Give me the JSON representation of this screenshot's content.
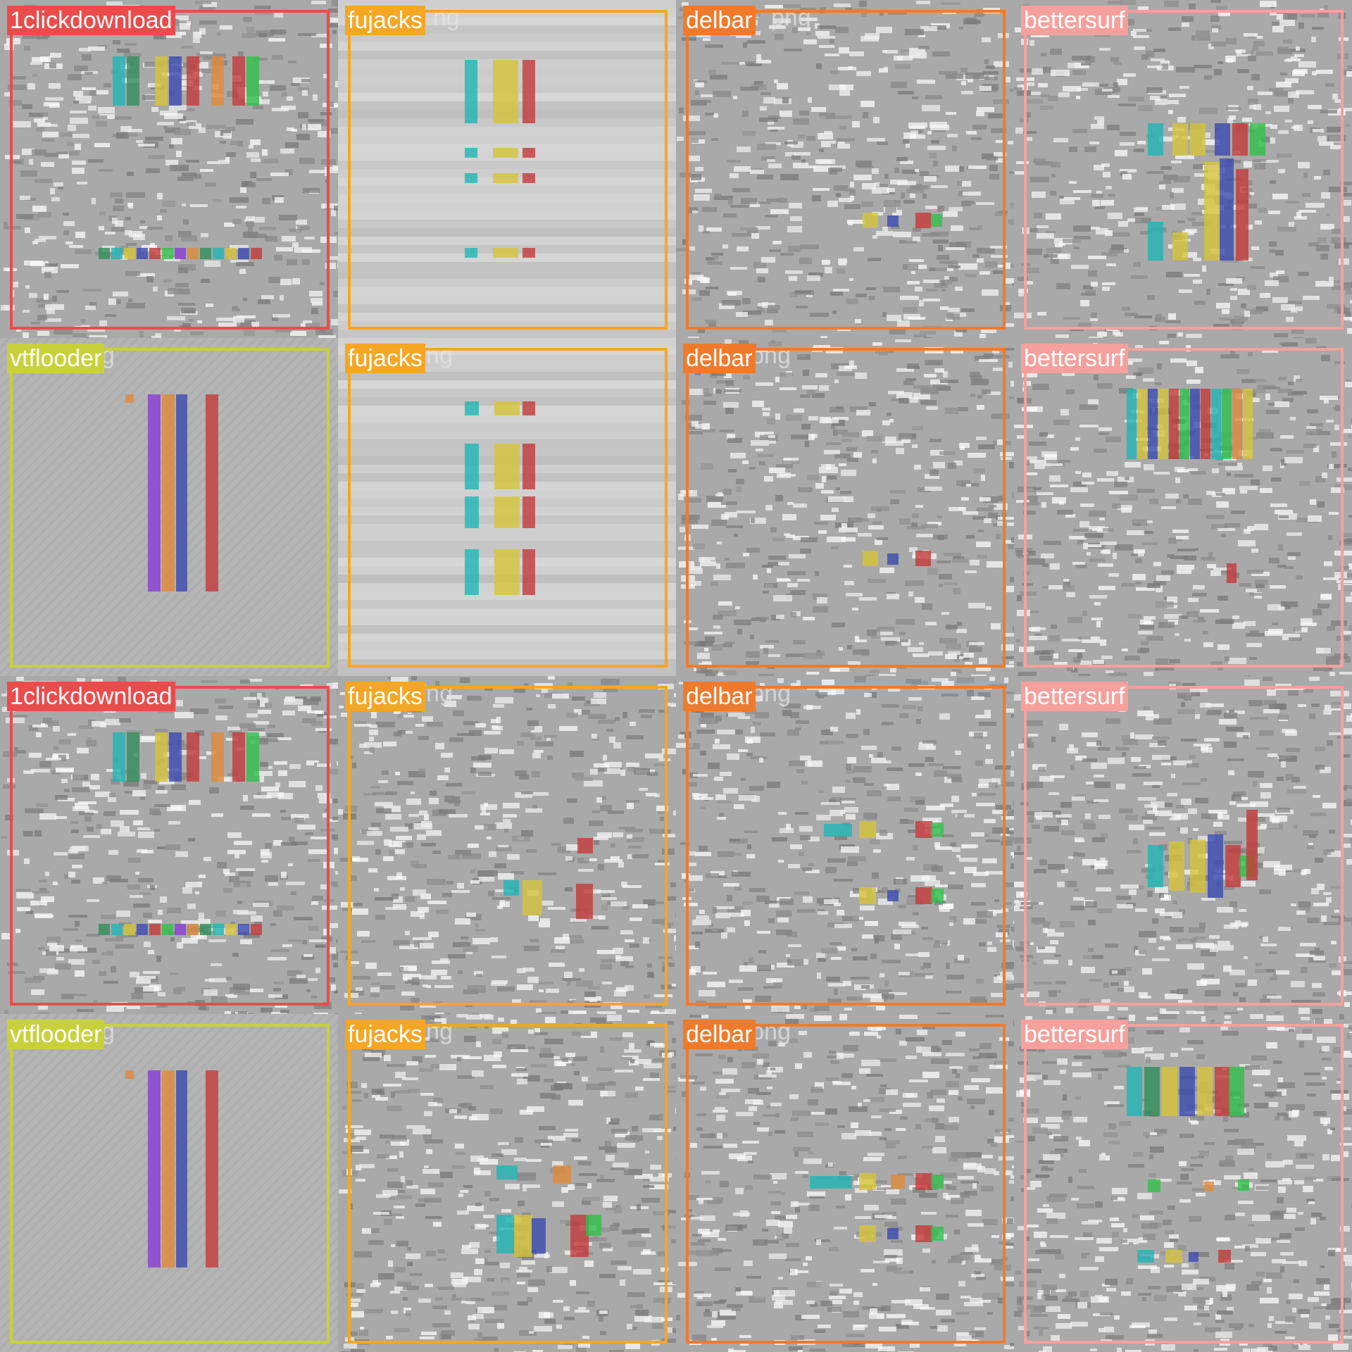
{
  "class_colors": {
    "1clickdownload": "#ec4b4b",
    "fujacks": "#f5a623",
    "delbar": "#f07a2c",
    "bettersurf": "#f5a09c",
    "vtflooder": "#c8d13a"
  },
  "mark_colors": [
    "#1fb5b5",
    "#d4c43a",
    "#3b4bb0",
    "#c43a3a",
    "#2fbf4a",
    "#8a3bd4",
    "#e08a3a",
    "#2f8f5a"
  ],
  "tiles": [
    {
      "label": "1clickdownload",
      "file": "",
      "texture": "noisy",
      "pattern": "top-cluster-bottom-line"
    },
    {
      "label": "fujacks",
      "file": "ng",
      "texture": "smooth",
      "pattern": "columns-4rows"
    },
    {
      "label": "delbar",
      "file": "png",
      "texture": "noisy",
      "pattern": "single-row"
    },
    {
      "label": "bettersurf",
      "file": "",
      "texture": "noisy",
      "pattern": "glyph-block"
    },
    {
      "label": "vtflooder",
      "file": "1 (91).png",
      "texture": "flat",
      "pattern": "tall-bars"
    },
    {
      "label": "fujacks",
      "file": "1 (75).png",
      "texture": "smooth",
      "pattern": "columns-4rows-b"
    },
    {
      "label": "delbar",
      "file": "1 (52).png",
      "texture": "noisy",
      "pattern": "single-row-b"
    },
    {
      "label": "bettersurf",
      "file": "1 (38).png",
      "texture": "noisy",
      "pattern": "dense-block"
    },
    {
      "label": "1clickdownload",
      "file": "1 (9).png",
      "texture": "noisy",
      "pattern": "top-cluster-bottom-line"
    },
    {
      "label": "fujacks",
      "file": "1 (72).png",
      "texture": "noisy",
      "pattern": "sparse-right"
    },
    {
      "label": "delbar",
      "file": "1 (50).png",
      "texture": "noisy",
      "pattern": "two-rows"
    },
    {
      "label": "bettersurf",
      "file": "1 (29).png",
      "texture": "noisy",
      "pattern": "mid-block"
    },
    {
      "label": "vtflooder",
      "file": "1 (87).png",
      "texture": "flat",
      "pattern": "tall-bars"
    },
    {
      "label": "fujacks",
      "file": "1 (64).png",
      "texture": "noisy",
      "pattern": "bottom-cluster"
    },
    {
      "label": "delbar",
      "file": "1 (47).png",
      "texture": "noisy",
      "pattern": "two-rows-b"
    },
    {
      "label": "bettersurf",
      "file": "1 (27).png",
      "texture": "noisy",
      "pattern": "top-block-diag"
    }
  ]
}
